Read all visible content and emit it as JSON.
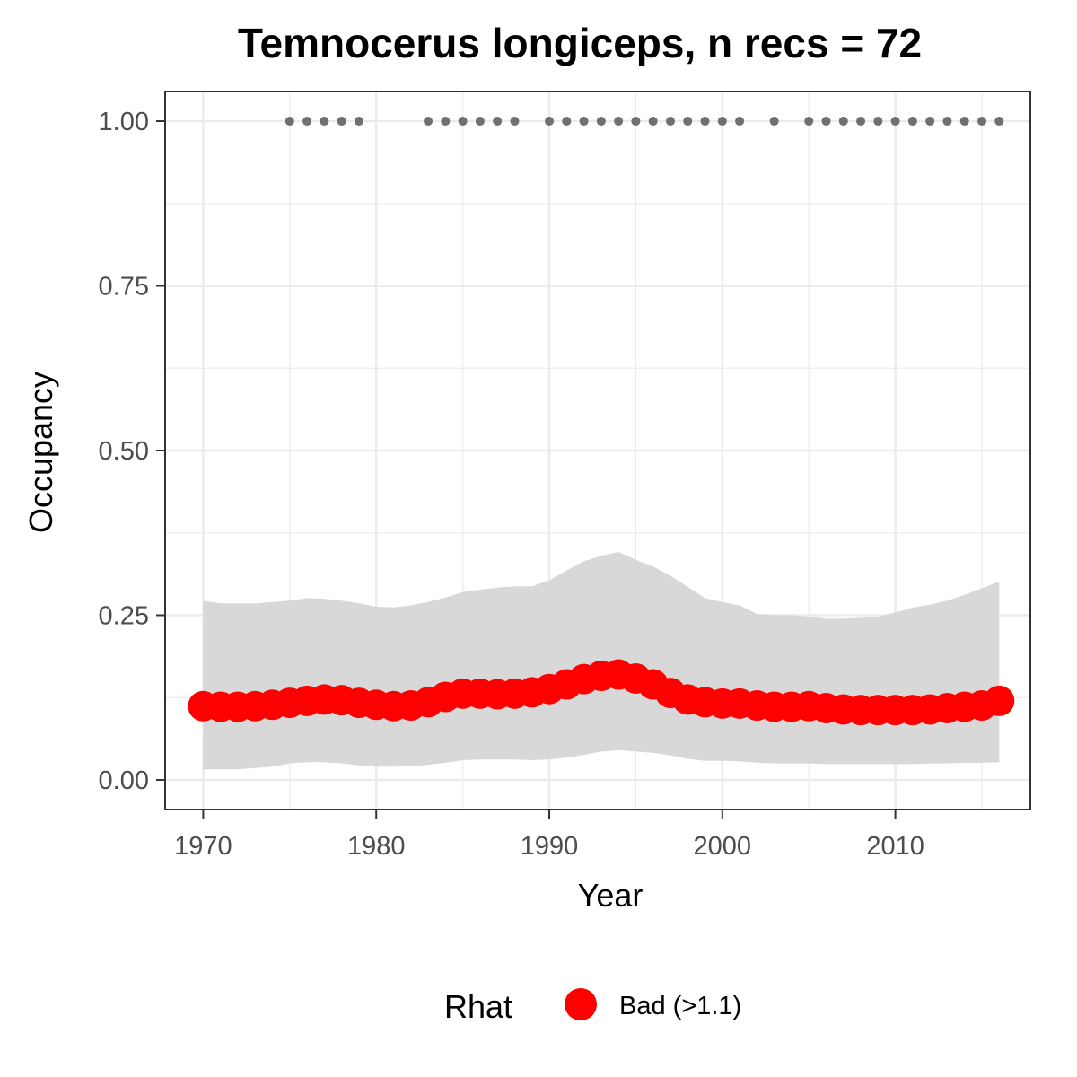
{
  "chart_data": {
    "type": "line",
    "title": "Temnocerus longiceps, n recs = 72",
    "xlabel": "Year",
    "ylabel": "Occupancy",
    "xlim": [
      1967.8,
      2017.8
    ],
    "ylim": [
      -0.045,
      1.045
    ],
    "x_ticks": [
      1970,
      1980,
      1990,
      2000,
      2010
    ],
    "x_tick_labels": [
      "1970",
      "1980",
      "1990",
      "2000",
      "2010"
    ],
    "y_ticks": [
      0,
      0.25,
      0.5,
      0.75,
      1.0
    ],
    "y_tick_labels": [
      "0.00",
      "0.25",
      "0.50",
      "0.75",
      "1.00"
    ],
    "grid": true,
    "legend": {
      "title": "Rhat",
      "placement": "bottom",
      "entries": [
        {
          "label": "Bad (>1.1)",
          "color": "#ff0000"
        }
      ]
    },
    "colors": {
      "mean": "#ff0000",
      "ribbon": "#d6d6d6",
      "records": "#707070",
      "grid": "#ebebeb",
      "panel_border": "#333333"
    },
    "years": [
      1970,
      1971,
      1972,
      1973,
      1974,
      1975,
      1976,
      1977,
      1978,
      1979,
      1980,
      1981,
      1982,
      1983,
      1984,
      1985,
      1986,
      1987,
      1988,
      1989,
      1990,
      1991,
      1992,
      1993,
      1994,
      1995,
      1996,
      1997,
      1998,
      1999,
      2000,
      2001,
      2002,
      2003,
      2004,
      2005,
      2006,
      2007,
      2008,
      2009,
      2010,
      2011,
      2012,
      2013,
      2014,
      2015,
      2016
    ],
    "mean_occupancy": [
      0.112,
      0.111,
      0.111,
      0.112,
      0.114,
      0.117,
      0.12,
      0.122,
      0.121,
      0.117,
      0.114,
      0.112,
      0.113,
      0.118,
      0.126,
      0.131,
      0.131,
      0.13,
      0.131,
      0.133,
      0.138,
      0.145,
      0.153,
      0.158,
      0.16,
      0.154,
      0.145,
      0.132,
      0.122,
      0.118,
      0.116,
      0.116,
      0.113,
      0.111,
      0.111,
      0.112,
      0.109,
      0.107,
      0.106,
      0.106,
      0.106,
      0.106,
      0.107,
      0.109,
      0.111,
      0.113,
      0.12
    ],
    "upper_ci": [
      0.272,
      0.268,
      0.268,
      0.268,
      0.27,
      0.272,
      0.276,
      0.275,
      0.272,
      0.268,
      0.263,
      0.262,
      0.265,
      0.27,
      0.277,
      0.285,
      0.289,
      0.292,
      0.294,
      0.294,
      0.303,
      0.318,
      0.332,
      0.34,
      0.346,
      0.334,
      0.324,
      0.31,
      0.293,
      0.276,
      0.27,
      0.265,
      0.252,
      0.25,
      0.25,
      0.248,
      0.245,
      0.245,
      0.246,
      0.248,
      0.254,
      0.262,
      0.266,
      0.272,
      0.281,
      0.291,
      0.301
    ],
    "lower_ci": [
      0.016,
      0.016,
      0.016,
      0.018,
      0.02,
      0.025,
      0.027,
      0.027,
      0.025,
      0.022,
      0.02,
      0.02,
      0.021,
      0.023,
      0.026,
      0.03,
      0.031,
      0.031,
      0.031,
      0.03,
      0.031,
      0.034,
      0.038,
      0.043,
      0.045,
      0.043,
      0.041,
      0.037,
      0.032,
      0.029,
      0.029,
      0.028,
      0.026,
      0.025,
      0.025,
      0.025,
      0.024,
      0.024,
      0.024,
      0.024,
      0.024,
      0.024,
      0.025,
      0.025,
      0.026,
      0.026,
      0.027
    ],
    "record_years": [
      1975,
      1976,
      1977,
      1978,
      1979,
      1983,
      1984,
      1985,
      1986,
      1987,
      1988,
      1990,
      1991,
      1992,
      1993,
      1994,
      1995,
      1996,
      1997,
      1998,
      1999,
      2000,
      2001,
      2003,
      2005,
      2006,
      2007,
      2008,
      2009,
      2010,
      2011,
      2012,
      2013,
      2014,
      2015,
      2016
    ],
    "record_value": 1.0
  }
}
